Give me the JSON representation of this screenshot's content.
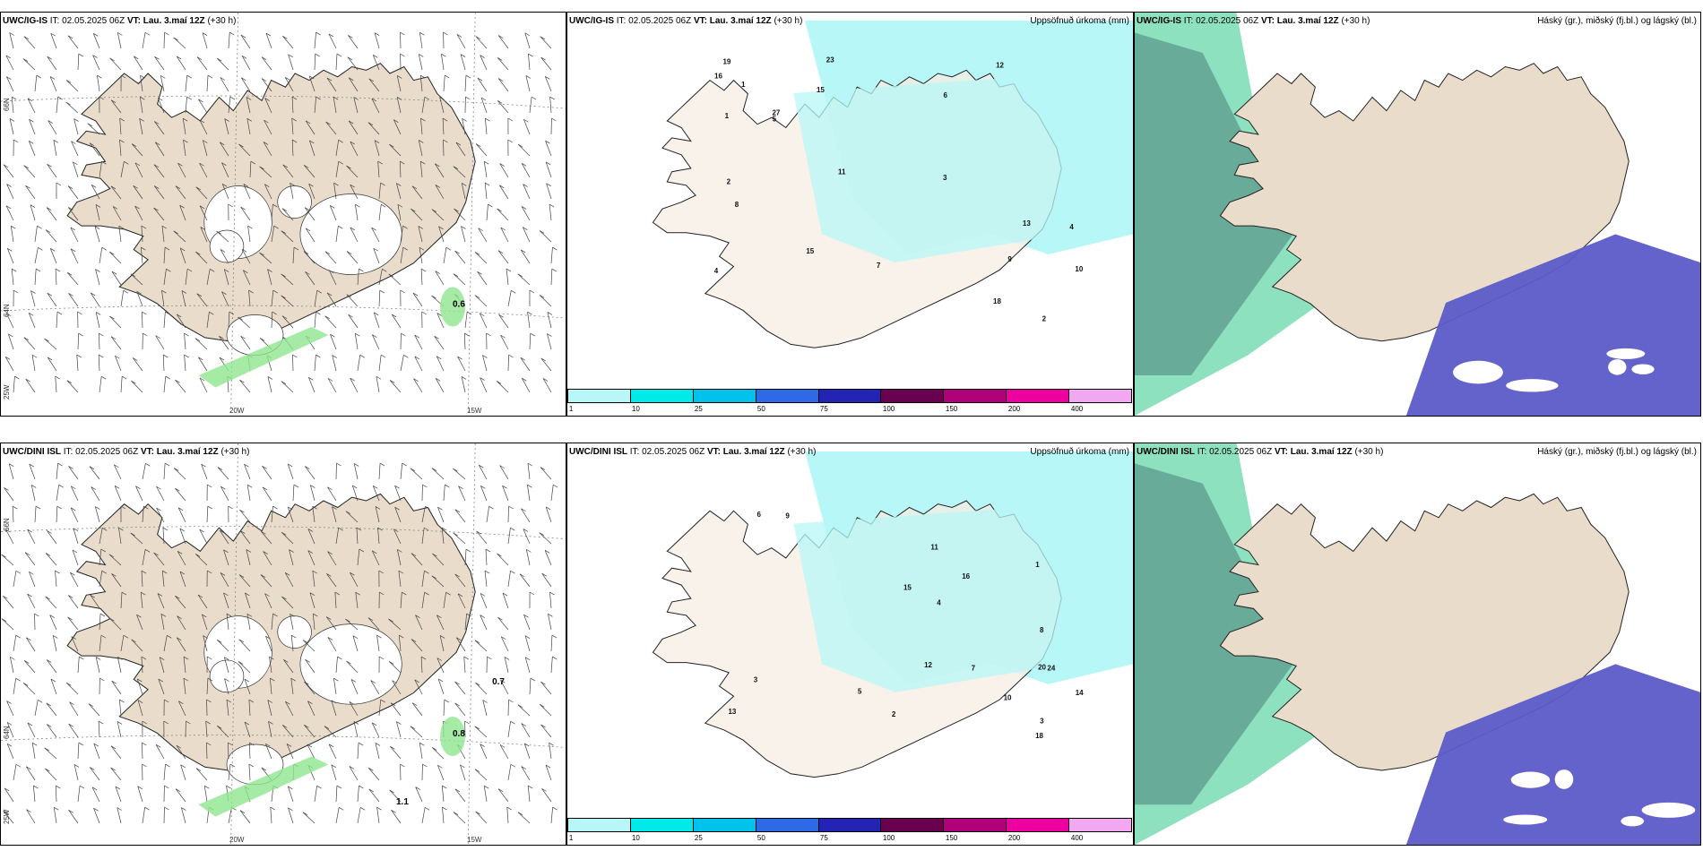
{
  "panels": {
    "r1c1": {
      "model": "UWC/IG-IS",
      "it_label": "IT:",
      "it": "02.05.2025 06Z",
      "vt_label": "VT:",
      "vt": "Lau. 3.maí 12Z",
      "lead": "(+30 h)",
      "right": "",
      "value_labels": [
        "0.6"
      ]
    },
    "r1c2": {
      "model": "UWC/IG-IS",
      "it_label": "IT:",
      "it": "02.05.2025 06Z",
      "vt_label": "VT:",
      "vt": "Lau. 3.maí 12Z",
      "lead": "(+30 h)",
      "right": "Uppsöfnuð úrkoma (mm)"
    },
    "r1c3": {
      "model": "UWC/IG-IS",
      "it_label": "IT:",
      "it": "02.05.2025 06Z",
      "vt_label": "VT:",
      "vt": "Lau. 3.maí 12Z",
      "lead": "(+30 h)",
      "right": "Háský (gr.), miðský (fj.bl.) og lágský (bl.)"
    },
    "r2c1": {
      "model": "UWC/DINI ISL",
      "it_label": "IT:",
      "it": "02.05.2025 06Z",
      "vt_label": "VT:",
      "vt": "Lau. 3.maí 12Z",
      "lead": "(+30 h)",
      "right": "",
      "value_labels": [
        "0.8",
        "0.7",
        "1.1"
      ]
    },
    "r2c2": {
      "model": "UWC/DINI ISL",
      "it_label": "IT:",
      "it": "02.05.2025 06Z",
      "vt_label": "VT:",
      "vt": "Lau. 3.maí 12Z",
      "lead": "(+30 h)",
      "right": "Uppsöfnuð úrkoma (mm)"
    },
    "r2c3": {
      "model": "UWC/DINI ISL",
      "it_label": "IT:",
      "it": "02.05.2025 06Z",
      "vt_label": "VT:",
      "vt": "Lau. 3.maí 12Z",
      "lead": "(+30 h)",
      "right": "Háský (gr.), miðský (fj.bl.) og lágský (bl.)"
    }
  },
  "axes": {
    "lat_top": "66N",
    "lat_mid": "64N",
    "lon_left": "20W",
    "lon_right": "15W",
    "lon_edge": "25W"
  },
  "precip_scale": {
    "ticks": [
      "1",
      "10",
      "25",
      "50",
      "75",
      "100",
      "150",
      "200",
      "400"
    ],
    "colors": [
      "#b8f7f7",
      "#00eaea",
      "#00c2ea",
      "#2f6ae6",
      "#2323b4",
      "#6a0050",
      "#b0007a",
      "#ee00a0",
      "#f2a8f0"
    ]
  },
  "precip_numbers_r1": [
    "1",
    "2",
    "3",
    "4",
    "6",
    "19",
    "15",
    "10",
    "23",
    "27",
    "7",
    "9",
    "8",
    "11",
    "13",
    "15",
    "16",
    "18",
    "5",
    "12",
    "2",
    "1",
    "4"
  ],
  "precip_numbers_r2": [
    "3",
    "4",
    "20",
    "14",
    "11",
    "10",
    "15",
    "16",
    "24",
    "13",
    "9",
    "12",
    "8",
    "2",
    "6",
    "5",
    "18",
    "1",
    "3",
    "7"
  ],
  "colors": {
    "land": "#e9dccb",
    "land_precip": "#f6ede3",
    "precip_cyan": "#b8f7f7",
    "high_cloud": "#5f9e8e",
    "mid_cloud": "#2fc88a",
    "low_cloud": "#5b5bc8",
    "ice": "#ffffff"
  }
}
